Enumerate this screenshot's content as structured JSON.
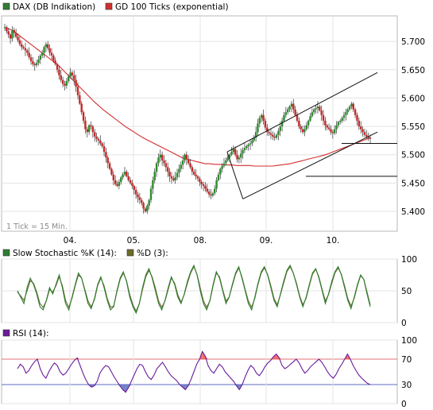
{
  "chart_data": [
    {
      "type": "candlestick",
      "legend": [
        {
          "name": "DAX (DB Indikation)",
          "color": "#2e7d32"
        },
        {
          "name": "GD 100 Ticks (exponential)",
          "color": "#d32f2f"
        }
      ],
      "note": "1 Tick = 15 Min.",
      "x_categories": [
        "04.",
        "05.",
        "08.",
        "09.",
        "10."
      ],
      "y_ticks": [
        "5.400",
        "5.450",
        "5.500",
        "5.550",
        "5.600",
        "5.650",
        "5.700"
      ],
      "ylim": [
        5365,
        5745
      ],
      "grid": true,
      "close_series": [
        5725,
        5718,
        5712,
        5705,
        5720,
        5715,
        5708,
        5702,
        5695,
        5690,
        5688,
        5684,
        5680,
        5672,
        5665,
        5660,
        5658,
        5662,
        5668,
        5675,
        5680,
        5690,
        5695,
        5688,
        5680,
        5675,
        5666,
        5660,
        5650,
        5640,
        5632,
        5625,
        5622,
        5630,
        5638,
        5645,
        5640,
        5632,
        5620,
        5605,
        5590,
        5575,
        5560,
        5545,
        5540,
        5552,
        5550,
        5540,
        5532,
        5528,
        5525,
        5520,
        5515,
        5505,
        5495,
        5485,
        5475,
        5465,
        5455,
        5448,
        5445,
        5452,
        5460,
        5465,
        5470,
        5462,
        5455,
        5450,
        5445,
        5438,
        5430,
        5425,
        5420,
        5415,
        5405,
        5400,
        5410,
        5420,
        5440,
        5455,
        5470,
        5485,
        5495,
        5500,
        5490,
        5485,
        5478,
        5470,
        5462,
        5458,
        5455,
        5460,
        5468,
        5475,
        5482,
        5490,
        5500,
        5492,
        5485,
        5478,
        5470,
        5465,
        5462,
        5458,
        5452,
        5448,
        5445,
        5440,
        5435,
        5430,
        5428,
        5432,
        5440,
        5455,
        5465,
        5475,
        5480,
        5485,
        5490,
        5495,
        5500,
        5505,
        5510,
        5500,
        5492,
        5495,
        5502,
        5508,
        5512,
        5515,
        5518,
        5520,
        5525,
        5530,
        5540,
        5555,
        5565,
        5570,
        5560,
        5548,
        5540,
        5538,
        5535,
        5532,
        5530,
        5535,
        5542,
        5550,
        5560,
        5570,
        5575,
        5580,
        5585,
        5590,
        5580,
        5570,
        5560,
        5550,
        5545,
        5540,
        5545,
        5552,
        5560,
        5568,
        5575,
        5580,
        5582,
        5585,
        5578,
        5570,
        5560,
        5552,
        5548,
        5545,
        5540,
        5538,
        5545,
        5552,
        5558,
        5560,
        5565,
        5570,
        5575,
        5580,
        5585,
        5590,
        5580,
        5570,
        5560,
        5550,
        5545,
        5540,
        5535,
        5532,
        5530,
        5528
      ],
      "ema_series": [
        5725,
        5722,
        5718,
        5712,
        5706,
        5700,
        5694,
        5688,
        5682,
        5676,
        5670,
        5664,
        5658,
        5650,
        5642,
        5634,
        5626,
        5618,
        5610,
        5602,
        5594,
        5587,
        5580,
        5574,
        5568,
        5562,
        5556,
        5550,
        5545,
        5540,
        5535,
        5530,
        5526,
        5522,
        5518,
        5514,
        5510,
        5506,
        5502,
        5498,
        5494,
        5492,
        5490,
        5488,
        5486,
        5484,
        5484,
        5483,
        5483,
        5482,
        5482,
        5482,
        5481,
        5481,
        5481,
        5481,
        5480,
        5480,
        5480,
        5480,
        5480,
        5481,
        5482,
        5483,
        5484,
        5486,
        5488,
        5490,
        5492,
        5494,
        5496,
        5498,
        5500,
        5503,
        5506,
        5509,
        5512,
        5515,
        5518,
        5521,
        5524,
        5527,
        5530
      ],
      "channel_upper": [
        [
          0.57,
          5505
        ],
        [
          0.95,
          5645
        ]
      ],
      "channel_lower": [
        [
          0.61,
          5422
        ],
        [
          0.95,
          5540
        ]
      ],
      "horizontal_lines": [
        5462,
        5520
      ]
    },
    {
      "type": "line",
      "legend": [
        {
          "name": "Slow Stochastic %K (14):",
          "color": "#2e7d32"
        },
        {
          "name": "%D (3):",
          "color": "#6b6b2b"
        }
      ],
      "y_ticks": [
        "0",
        "50",
        "100"
      ],
      "ylim": [
        0,
        100
      ],
      "k_values": [
        50,
        40,
        30,
        55,
        70,
        60,
        45,
        25,
        20,
        35,
        55,
        45,
        60,
        75,
        55,
        30,
        20,
        40,
        60,
        78,
        70,
        50,
        30,
        22,
        38,
        60,
        72,
        55,
        35,
        20,
        25,
        50,
        70,
        80,
        65,
        40,
        25,
        15,
        30,
        55,
        75,
        85,
        70,
        50,
        30,
        20,
        35,
        55,
        72,
        60,
        40,
        30,
        45,
        65,
        80,
        90,
        75,
        50,
        30,
        20,
        35,
        60,
        80,
        70,
        50,
        30,
        40,
        60,
        78,
        88,
        70,
        50,
        30,
        20,
        40,
        62,
        80,
        88,
        75,
        55,
        35,
        25,
        45,
        65,
        82,
        90,
        78,
        60,
        40,
        25,
        40,
        60,
        78,
        85,
        70,
        50,
        30,
        45,
        65,
        80,
        88,
        75,
        55,
        35,
        22,
        40,
        60,
        75,
        68,
        45,
        25
      ],
      "d_values": [
        48,
        42,
        35,
        50,
        66,
        62,
        48,
        30,
        24,
        34,
        52,
        48,
        58,
        72,
        58,
        35,
        24,
        38,
        58,
        75,
        70,
        52,
        34,
        25,
        36,
        58,
        70,
        58,
        38,
        24,
        26,
        48,
        68,
        78,
        66,
        44,
        28,
        18,
        30,
        52,
        72,
        82,
        72,
        54,
        34,
        24,
        34,
        52,
        70,
        62,
        44,
        32,
        44,
        62,
        78,
        88,
        76,
        54,
        34,
        24,
        34,
        58,
        78,
        72,
        52,
        34,
        40,
        58,
        76,
        86,
        72,
        52,
        34,
        24,
        38,
        60,
        78,
        86,
        76,
        58,
        38,
        28,
        44,
        62,
        80,
        88,
        78,
        62,
        42,
        28,
        38,
        58,
        76,
        84,
        72,
        52,
        34,
        44,
        62,
        78,
        86,
        76,
        58,
        38,
        26,
        38,
        58,
        74,
        68,
        48,
        28
      ]
    },
    {
      "type": "line",
      "legend": [
        {
          "name": "RSI (14):",
          "color": "#6a1b9a"
        }
      ],
      "y_ticks": [
        "0",
        "30",
        "70",
        "100"
      ],
      "ylim": [
        0,
        100
      ],
      "reference_lines": [
        30,
        70
      ],
      "values": [
        55,
        62,
        58,
        48,
        52,
        60,
        66,
        70,
        55,
        45,
        40,
        50,
        58,
        64,
        60,
        50,
        45,
        48,
        55,
        62,
        68,
        72,
        60,
        48,
        38,
        30,
        26,
        28,
        35,
        48,
        55,
        60,
        58,
        50,
        42,
        35,
        28,
        22,
        18,
        25,
        35,
        45,
        55,
        62,
        60,
        50,
        42,
        38,
        45,
        55,
        60,
        65,
        58,
        50,
        44,
        40,
        36,
        30,
        26,
        22,
        28,
        38,
        50,
        62,
        70,
        82,
        75,
        60,
        52,
        48,
        55,
        62,
        58,
        50,
        45,
        40,
        35,
        28,
        22,
        30,
        42,
        52,
        60,
        56,
        48,
        44,
        50,
        58,
        64,
        68,
        74,
        78,
        72,
        60,
        55,
        58,
        62,
        66,
        70,
        64,
        55,
        48,
        52,
        58,
        62,
        66,
        70,
        65,
        58,
        50,
        44,
        40,
        46,
        55,
        62,
        70,
        78,
        70,
        60,
        52,
        45,
        40,
        36,
        32,
        30
      ]
    }
  ]
}
